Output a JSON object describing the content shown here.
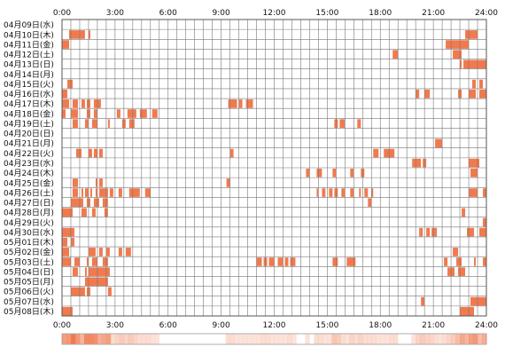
{
  "colors": {
    "activity": "#f07a4e",
    "grid": "#777777",
    "summary": "#f07a4e"
  },
  "chart_data": {
    "type": "heatmap",
    "x_ticks": [
      "0:00",
      "3:00",
      "6:00",
      "9:00",
      "12:00",
      "15:00",
      "18:00",
      "21:00",
      "24:00"
    ],
    "x_range_hours": [
      0,
      24
    ],
    "rows": [
      {
        "label": "04月09日(水)",
        "segments": []
      },
      {
        "label": "04月10日(木)",
        "segments": [
          [
            0.4,
            1.3
          ],
          [
            1.5,
            1.6
          ],
          [
            22.8,
            23.5
          ]
        ]
      },
      {
        "label": "04月11日(金)",
        "segments": [
          [
            0,
            0.4
          ],
          [
            21.7,
            23.0
          ]
        ]
      },
      {
        "label": "04月12日(土)",
        "segments": [
          [
            18.7,
            19.0
          ],
          [
            22.1,
            22.6
          ]
        ]
      },
      {
        "label": "04月13日(日)",
        "segments": [
          [
            22.5,
            22.6
          ],
          [
            22.7,
            24.0
          ]
        ]
      },
      {
        "label": "04月14日(月)",
        "segments": []
      },
      {
        "label": "04月15日(火)",
        "segments": [
          [
            0.3,
            0.6
          ],
          [
            23.2,
            23.4
          ],
          [
            23.6,
            23.8
          ]
        ]
      },
      {
        "label": "04月16日(水)",
        "segments": [
          [
            0,
            0.3
          ],
          [
            20.0,
            20.2
          ],
          [
            20.5,
            20.8
          ],
          [
            22.4,
            22.6
          ],
          [
            23.0,
            23.4
          ],
          [
            23.6,
            24.0
          ]
        ]
      },
      {
        "label": "04月17日(木)",
        "segments": [
          [
            0,
            0.4
          ],
          [
            0.6,
            0.9
          ],
          [
            1.1,
            1.3
          ],
          [
            1.4,
            1.6
          ],
          [
            1.8,
            2.2
          ],
          [
            9.4,
            9.9
          ],
          [
            10.0,
            10.2
          ],
          [
            10.4,
            10.8
          ]
        ]
      },
      {
        "label": "04月18日(金)",
        "segments": [
          [
            0,
            0.2
          ],
          [
            0.5,
            0.9
          ],
          [
            1.4,
            1.6
          ],
          [
            1.8,
            2.0
          ],
          [
            3.1,
            3.3
          ],
          [
            3.7,
            4.2
          ],
          [
            4.4,
            4.8
          ],
          [
            5.1,
            5.4
          ]
        ]
      },
      {
        "label": "04月19日(土)",
        "segments": [
          [
            0.6,
            0.9
          ],
          [
            1.3,
            1.5
          ],
          [
            1.7,
            2.0
          ],
          [
            2.6,
            2.7
          ],
          [
            3.4,
            3.6
          ],
          [
            3.8,
            4.1
          ],
          [
            15.4,
            15.6
          ],
          [
            15.7,
            16.0
          ],
          [
            16.7,
            16.9
          ]
        ]
      },
      {
        "label": "04月20日(日)",
        "segments": []
      },
      {
        "label": "04月21日(月)",
        "segments": [
          [
            21.1,
            21.5
          ]
        ]
      },
      {
        "label": "04月22日(火)",
        "segments": [
          [
            0.8,
            1.1
          ],
          [
            1.5,
            1.7
          ],
          [
            1.8,
            2.0
          ],
          [
            2.1,
            2.3
          ],
          [
            9.5,
            9.7
          ],
          [
            17.6,
            17.9
          ],
          [
            18.2,
            18.8
          ]
        ]
      },
      {
        "label": "04月23日(水)",
        "segments": [
          [
            19.8,
            20.3
          ],
          [
            20.4,
            20.6
          ],
          [
            23.0,
            23.6
          ]
        ]
      },
      {
        "label": "04月24日(木)",
        "segments": [
          [
            13.8,
            14.0
          ],
          [
            14.4,
            14.7
          ],
          [
            15.3,
            15.5
          ],
          [
            16.3,
            16.5
          ],
          [
            16.9,
            17.1
          ],
          [
            23.1,
            23.5
          ]
        ]
      },
      {
        "label": "04月25日(金)",
        "segments": [
          [
            0.6,
            0.9
          ],
          [
            1.9,
            2.0
          ],
          [
            2.1,
            2.3
          ],
          [
            9.3,
            9.5
          ]
        ]
      },
      {
        "label": "04月26日(土)",
        "segments": [
          [
            0.6,
            0.9
          ],
          [
            1.1,
            1.2
          ],
          [
            1.3,
            1.5
          ],
          [
            1.6,
            1.7
          ],
          [
            1.9,
            2.0
          ],
          [
            2.1,
            2.6
          ],
          [
            2.7,
            2.9
          ],
          [
            3.2,
            3.4
          ],
          [
            3.8,
            4.4
          ],
          [
            4.7,
            5.0
          ],
          [
            14.4,
            14.5
          ],
          [
            14.7,
            14.9
          ],
          [
            15.1,
            15.3
          ],
          [
            15.4,
            15.6
          ],
          [
            15.8,
            16.0
          ],
          [
            16.3,
            16.5
          ],
          [
            16.8,
            16.9
          ],
          [
            17.1,
            17.3
          ],
          [
            17.5,
            17.6
          ],
          [
            23.0,
            23.5
          ],
          [
            23.8,
            24.0
          ]
        ]
      },
      {
        "label": "04月27日(日)",
        "segments": [
          [
            0.5,
            1.2
          ],
          [
            1.4,
            1.6
          ],
          [
            1.8,
            2.1
          ],
          [
            2.3,
            2.6
          ],
          [
            17.3,
            17.5
          ]
        ]
      },
      {
        "label": "04月28日(月)",
        "segments": [
          [
            0,
            0.6
          ],
          [
            1.1,
            1.4
          ],
          [
            1.7,
            1.9
          ],
          [
            2.4,
            2.6
          ],
          [
            22.6,
            22.8
          ]
        ]
      },
      {
        "label": "04月29日(火)",
        "segments": [
          [
            23.8,
            24.0
          ]
        ]
      },
      {
        "label": "04月30日(水)",
        "segments": [
          [
            0,
            0.7
          ],
          [
            20.2,
            20.4
          ],
          [
            20.6,
            20.8
          ],
          [
            20.9,
            21.2
          ],
          [
            22.9,
            23.3
          ],
          [
            23.6,
            24.0
          ]
        ]
      },
      {
        "label": "05月01日(木)",
        "segments": [
          [
            0,
            0.3
          ],
          [
            0.5,
            0.7
          ]
        ]
      },
      {
        "label": "05月02日(金)",
        "segments": [
          [
            0,
            0.4
          ],
          [
            1.5,
            1.9
          ],
          [
            2.1,
            2.3
          ],
          [
            2.5,
            2.7
          ],
          [
            3.2,
            3.4
          ],
          [
            3.6,
            3.9
          ],
          [
            22.1,
            22.4
          ]
        ]
      },
      {
        "label": "05月03日(土)",
        "segments": [
          [
            0,
            0.5
          ],
          [
            0.7,
            1.0
          ],
          [
            1.4,
            1.5
          ],
          [
            1.7,
            2.0
          ],
          [
            2.3,
            2.6
          ],
          [
            11.0,
            11.3
          ],
          [
            11.4,
            11.6
          ],
          [
            11.7,
            12.0
          ],
          [
            12.2,
            12.5
          ],
          [
            12.6,
            12.8
          ],
          [
            12.9,
            13.2
          ],
          [
            15.3,
            15.6
          ],
          [
            16.1,
            16.6
          ],
          [
            21.6,
            21.8
          ],
          [
            22.3,
            22.6
          ],
          [
            23.3,
            23.4
          ],
          [
            23.8,
            24.0
          ]
        ]
      },
      {
        "label": "05月04日(日)",
        "segments": [
          [
            0.6,
            0.9
          ],
          [
            1.3,
            1.4
          ],
          [
            1.5,
            2.7
          ],
          [
            21.8,
            22.2
          ],
          [
            22.4,
            22.8
          ]
        ]
      },
      {
        "label": "05月05日(月)",
        "segments": [
          [
            1.3,
            2.6
          ]
        ]
      },
      {
        "label": "05月06日(火)",
        "segments": [
          [
            0.5,
            1.3
          ],
          [
            1.4,
            1.6
          ],
          [
            2.6,
            2.8
          ]
        ]
      },
      {
        "label": "05月07日(水)",
        "segments": [
          [
            20.3,
            20.5
          ],
          [
            23.1,
            24.0
          ]
        ]
      },
      {
        "label": "05月08日(木)",
        "segments": [
          [
            0,
            0.6
          ],
          [
            22.5,
            23.3
          ]
        ]
      }
    ],
    "summary_bar": true,
    "grid": true
  }
}
